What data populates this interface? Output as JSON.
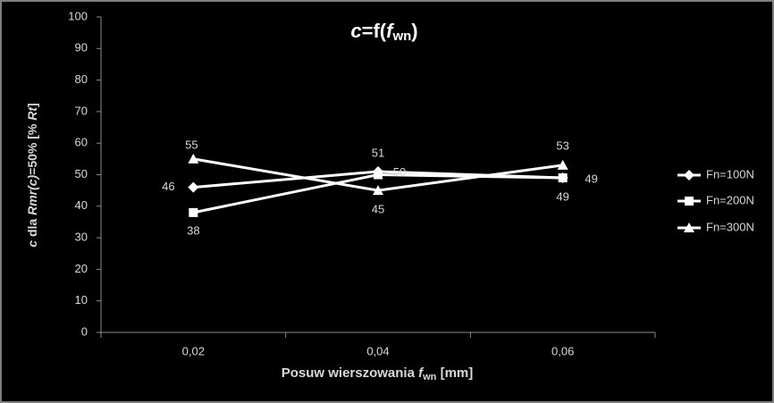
{
  "chart_data": {
    "type": "line",
    "title": [
      "c",
      "=f(",
      "f",
      "wn",
      ")"
    ],
    "x_label": [
      "Posuw wierszowania ",
      "f",
      "wn",
      " [mm]"
    ],
    "y_label": [
      "c",
      " dla ",
      "Rmr(c)",
      "=50% [% ",
      "Rt",
      "]"
    ],
    "categories": [
      "0,02",
      "0,04",
      "0,06"
    ],
    "series": [
      {
        "name": "Fn=100N",
        "color": "#ffffff",
        "marker": "diamond",
        "values": [
          46,
          51,
          49
        ]
      },
      {
        "name": "Fn=200N",
        "color": "#ffffff",
        "marker": "square",
        "values": [
          38,
          50,
          49
        ]
      },
      {
        "name": "Fn=300N",
        "color": "#ffffff",
        "marker": "triangle",
        "values": [
          55,
          45,
          53
        ]
      }
    ],
    "ylim": [
      0,
      100
    ],
    "yticks": [
      0,
      10,
      20,
      30,
      40,
      50,
      60,
      70,
      80,
      90,
      100
    ],
    "grid": false,
    "legend": "right"
  }
}
